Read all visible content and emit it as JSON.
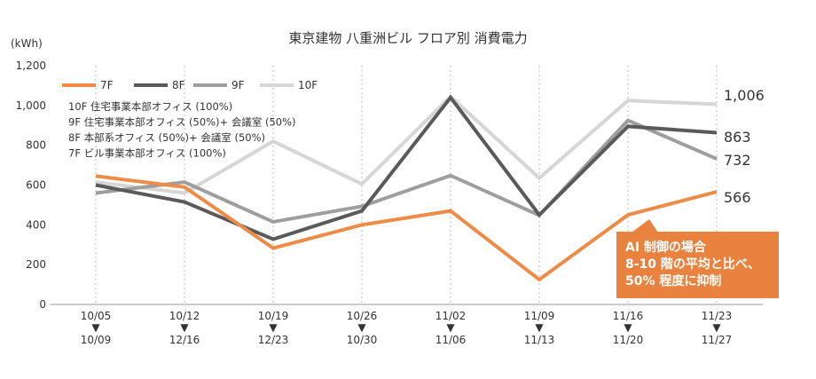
{
  "chart_data": {
    "type": "line",
    "title": "東京建物 八重洲ビル フロア別 消費電力",
    "ylabel": "(kWh)",
    "ylim": [
      0,
      1200
    ],
    "yticks": [
      "0",
      "200",
      "400",
      "600",
      "800",
      "1,000",
      "1,200"
    ],
    "ytick_values": [
      0,
      200,
      400,
      600,
      800,
      1000,
      1200
    ],
    "x_start": [
      "10/05",
      "10/12",
      "10/19",
      "10/26",
      "11/02",
      "11/09",
      "11/16",
      "11/23"
    ],
    "x_arrow": "▼",
    "x_end": [
      "10/09",
      "12/16",
      "12/23",
      "10/30",
      "11/06",
      "11/13",
      "11/20",
      "11/27"
    ],
    "grid": "vertical",
    "legend_placement": "top-left",
    "series": [
      {
        "name": "7F",
        "color": "#EE8B47",
        "values": [
          645,
          590,
          283,
          400,
          470,
          125,
          450,
          566
        ],
        "end_label": "566"
      },
      {
        "name": "8F",
        "color": "#5A5A5A",
        "values": [
          600,
          515,
          328,
          470,
          1040,
          450,
          895,
          863
        ],
        "end_label": "863"
      },
      {
        "name": "9F",
        "color": "#9E9E9E",
        "values": [
          560,
          615,
          415,
          493,
          648,
          448,
          925,
          732
        ],
        "end_label": "732"
      },
      {
        "name": "10F",
        "color": "#D6D6D6",
        "values": [
          615,
          560,
          820,
          605,
          1045,
          635,
          1025,
          1006
        ],
        "end_label": "1,006"
      }
    ],
    "notes": [
      "10F 住宅事業本部オフィス (100%)",
      "9F 住宅事業本部オフィス (50%)+ 会議室 (50%)",
      "8F 本部系オフィス (50%)+ 会議室 (50%)",
      "7F ビル事業本部オフィス (100%)"
    ],
    "callout": {
      "lines": [
        "AI 制御の場合",
        "8-10 階の平均と比べ、",
        "50% 程度に抑制"
      ],
      "color": "#E9823F"
    }
  }
}
